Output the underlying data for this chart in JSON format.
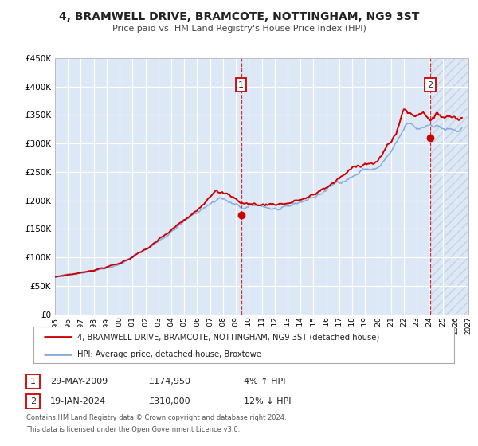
{
  "title": "4, BRAMWELL DRIVE, BRAMCOTE, NOTTINGHAM, NG9 3ST",
  "subtitle": "Price paid vs. HM Land Registry's House Price Index (HPI)",
  "legend_line1": "4, BRAMWELL DRIVE, BRAMCOTE, NOTTINGHAM, NG9 3ST (detached house)",
  "legend_line2": "HPI: Average price, detached house, Broxtowe",
  "annotation1_date": "29-MAY-2009",
  "annotation1_price": "£174,950",
  "annotation1_hpi": "4% ↑ HPI",
  "annotation2_date": "19-JAN-2024",
  "annotation2_price": "£310,000",
  "annotation2_hpi": "12% ↓ HPI",
  "footnote1": "Contains HM Land Registry data © Crown copyright and database right 2024.",
  "footnote2": "This data is licensed under the Open Government Licence v3.0.",
  "xmin": 1995,
  "xmax": 2027,
  "ymin": 0,
  "ymax": 450000,
  "yticks": [
    0,
    50000,
    100000,
    150000,
    200000,
    250000,
    300000,
    350000,
    400000,
    450000
  ],
  "ytick_labels": [
    "£0",
    "£50K",
    "£100K",
    "£150K",
    "£200K",
    "£250K",
    "£300K",
    "£350K",
    "£400K",
    "£450K"
  ],
  "fig_bg_color": "#ffffff",
  "plot_bg_color": "#dce8f5",
  "grid_color": "#ffffff",
  "line1_color": "#cc0000",
  "line2_color": "#88aadd",
  "sale1_x": 2009.41,
  "sale1_y": 174950,
  "sale2_x": 2024.05,
  "sale2_y": 310000,
  "vline1_x": 2009.41,
  "vline2_x": 2024.05,
  "marker_color": "#cc0000",
  "annot_box_color": "#cc0000"
}
